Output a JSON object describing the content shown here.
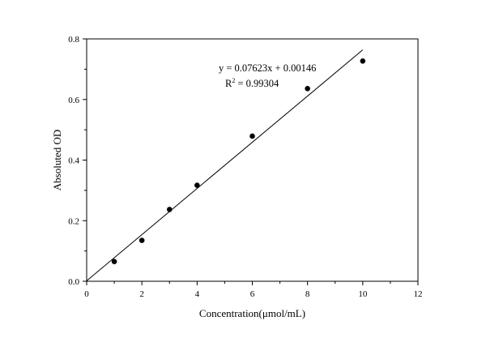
{
  "chart_data": {
    "type": "scatter",
    "title": "",
    "xlabel": "Concentration(μmol/mL)",
    "ylabel": "Absoluted OD",
    "xlim": [
      0,
      12
    ],
    "ylim": [
      0,
      0.8
    ],
    "xticks": [
      0,
      2,
      4,
      6,
      8,
      10,
      12
    ],
    "yticks": [
      0.0,
      0.2,
      0.4,
      0.6,
      0.8
    ],
    "xtick_labels": [
      "0",
      "2",
      "4",
      "6",
      "8",
      "10",
      "12"
    ],
    "ytick_labels": [
      "0.0",
      "0.2",
      "0.4",
      "0.6",
      "0.8"
    ],
    "grid": false,
    "legend": "none",
    "series": [
      {
        "x": [
          1,
          2,
          3,
          4,
          6,
          8,
          10
        ],
        "y": [
          0.065,
          0.135,
          0.237,
          0.317,
          0.479,
          0.636,
          0.727
        ],
        "marker_color": "#000000"
      }
    ],
    "fit_line": {
      "slope": 0.07623,
      "intercept": 0.00146,
      "x_range": [
        0,
        10
      ],
      "color": "#000000"
    },
    "annotations": {
      "equation": "y = 0.07623x + 0.00146",
      "r2_prefix": "R",
      "r2_sup": "2",
      "r2_value": " = 0.99304"
    }
  }
}
